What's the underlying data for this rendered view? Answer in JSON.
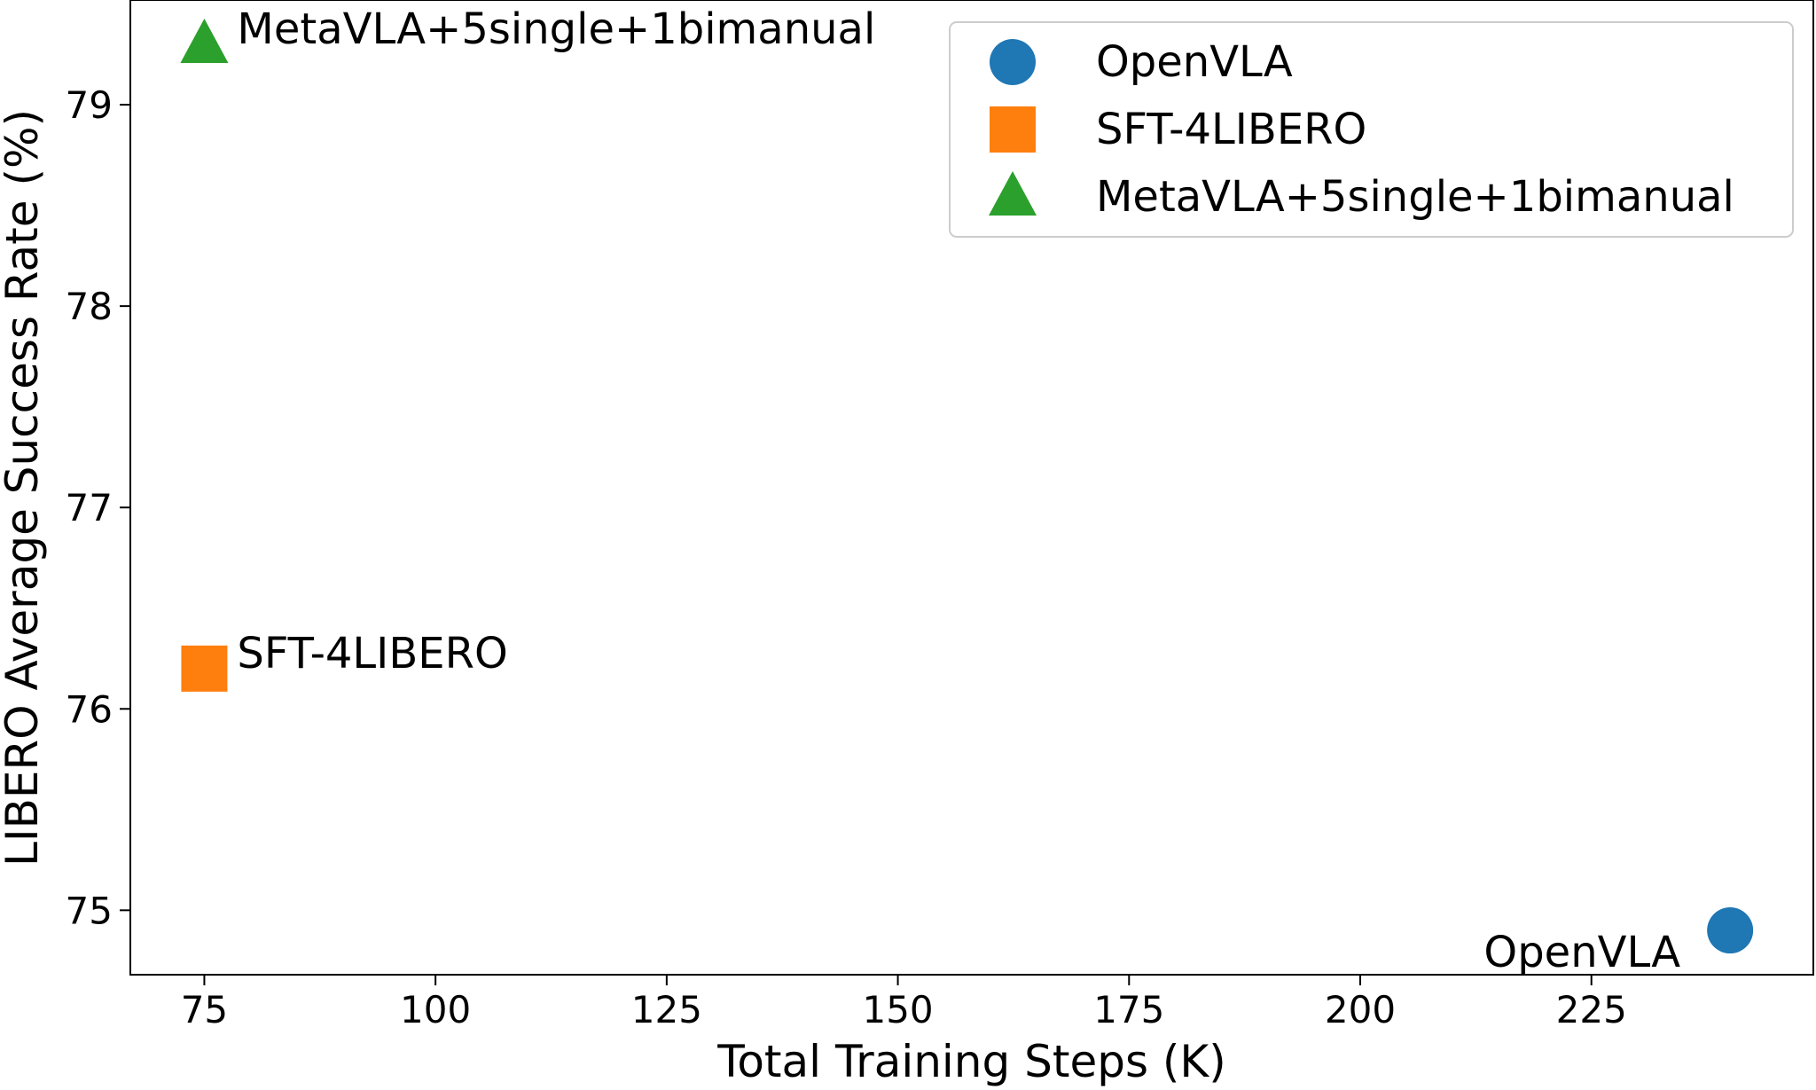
{
  "chart_data": {
    "type": "scatter",
    "title": "",
    "xlabel": "Total Training Steps (K)",
    "ylabel": "LIBERO Average Success Rate (%)",
    "xlim": [
      67,
      249
    ],
    "ylim": [
      74.68,
      79.52
    ],
    "xticks": [
      75,
      100,
      125,
      150,
      175,
      200,
      225
    ],
    "yticks": [
      75,
      76,
      77,
      78,
      79
    ],
    "grid": false,
    "legend_position": "top-right",
    "series": [
      {
        "name": "OpenVLA",
        "marker": "circle",
        "color": "#1f77b4",
        "points": [
          {
            "x": 240,
            "y": 74.9,
            "label": "OpenVLA",
            "label_side": "lower-left"
          }
        ]
      },
      {
        "name": "SFT-4LIBERO",
        "marker": "square",
        "color": "#ff7f0e",
        "points": [
          {
            "x": 75,
            "y": 76.2,
            "label": "SFT-4LIBERO",
            "label_side": "right"
          }
        ]
      },
      {
        "name": "MetaVLA+5single+1bimanual",
        "marker": "triangle",
        "color": "#2ca02c",
        "points": [
          {
            "x": 75,
            "y": 79.3,
            "label": "MetaVLA+5single+1bimanual",
            "label_side": "right"
          }
        ]
      }
    ]
  }
}
